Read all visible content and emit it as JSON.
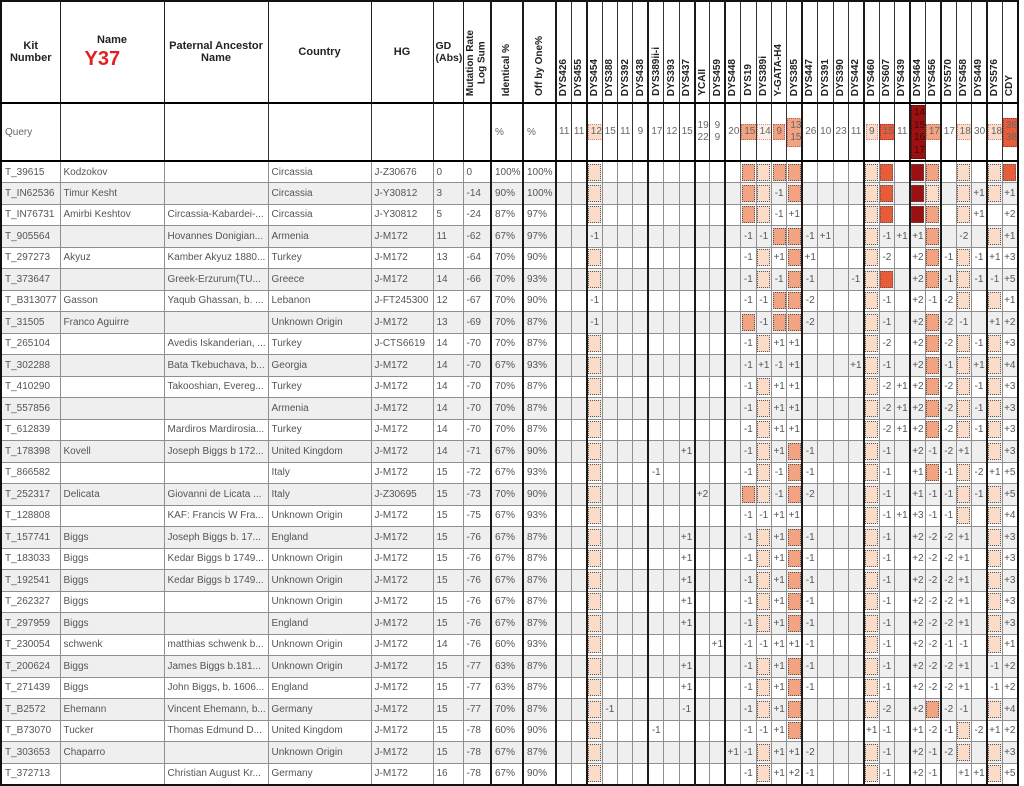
{
  "table_title": "Y-DNA matches comparison grid",
  "header": {
    "kit": "Kit\nNumber",
    "name": "Name",
    "name_badge": "Y37",
    "ancestor": "Paternal Ancestor\nName",
    "country": "Country",
    "hg": "HG",
    "gd": "GD\n(Abs)",
    "mutation": "Mutation Rate\nLog Sum",
    "identical": "Identical %",
    "offbyone": "Off by One%"
  },
  "colors": {
    "badge_red": "#e41f1f",
    "tint_faint": "#fdefe8",
    "tint_light": "#fadcc8",
    "tint_salmon": "#f2a381",
    "tint_red": "#e85c3a",
    "tint_darkred": "#9b1111",
    "row_stripe": "#efefef"
  },
  "markers": [
    "DYS426",
    "DYS455",
    "DYS454",
    "DYS388",
    "DYS392",
    "DYS438",
    "DYS389ii-i",
    "DYS393",
    "DYS437",
    "YCAII",
    "DYS459",
    "DYS448",
    "DYS19",
    "DYS389i",
    "Y-GATA-H4",
    "DYS385",
    "DYS447",
    "DYS391",
    "DYS390",
    "DYS442",
    "DYS460",
    "DYS607",
    "DYS439",
    "DYS464",
    "DYS456",
    "DYS570",
    "DYS458",
    "DYS449",
    "DYS576",
    "CDY"
  ],
  "query": {
    "kit": "Query",
    "identical": "%",
    "offbyone": "%",
    "values": [
      {
        "v": "11",
        "c": 0
      },
      {
        "v": "11",
        "c": 0
      },
      {
        "v": "12",
        "c": 2
      },
      {
        "v": "15",
        "c": 0
      },
      {
        "v": "11",
        "c": 0
      },
      {
        "v": "9",
        "c": 0
      },
      {
        "v": "17",
        "c": 0
      },
      {
        "v": "12",
        "c": 0
      },
      {
        "v": "15",
        "c": 0
      },
      {
        "v": "19\n22",
        "c": 0
      },
      {
        "v": "9\n9",
        "c": 0
      },
      {
        "v": "20",
        "c": 0
      },
      {
        "v": "15",
        "c": 3
      },
      {
        "v": "14",
        "c": 1
      },
      {
        "v": "9",
        "c": 3
      },
      {
        "v": "13\n15",
        "c": 3
      },
      {
        "v": "26",
        "c": 0
      },
      {
        "v": "10",
        "c": 0
      },
      {
        "v": "23",
        "c": 0
      },
      {
        "v": "11",
        "c": 0
      },
      {
        "v": "9",
        "c": 2
      },
      {
        "v": "15",
        "c": 4
      },
      {
        "v": "11",
        "c": 0
      },
      {
        "v": "14\n15\n16\n17",
        "c": 5
      },
      {
        "v": "17",
        "c": 3
      },
      {
        "v": "17",
        "c": 0
      },
      {
        "v": "18",
        "c": 2
      },
      {
        "v": "30",
        "c": 0
      },
      {
        "v": "18",
        "c": 2
      },
      {
        "v": "36\n38",
        "c": 4
      }
    ]
  },
  "rows": [
    {
      "kit": "T_39615",
      "name": "Kodzokov",
      "anc": "",
      "country": "Circassia",
      "hg": "J-Z30676",
      "gd": "0",
      "mut": "0",
      "id": "100%",
      "off": "100%",
      "m": {
        "DYS454": "b2",
        "DYS19": "b3",
        "DYS389i": "b2",
        "Y-GATA-H4": "b3",
        "DYS385": "b3",
        "DYS460": "b2",
        "DYS607": "b4",
        "DYS464": "b5",
        "DYS456": "b3",
        "DYS458": "b2",
        "DYS576": "b2",
        "CDY": "b4"
      }
    },
    {
      "kit": "T_IN62536",
      "name": "Timur Kesht",
      "anc": "",
      "country": "Circassia",
      "hg": "J-Y30812",
      "gd": "3",
      "mut": "-14",
      "id": "90%",
      "off": "100%",
      "m": {
        "DYS454": "b2",
        "DYS19": "b3",
        "DYS389i": "b2",
        "Y-GATA-H4": "-1",
        "DYS385": "b3",
        "DYS460": "b2",
        "DYS607": "b4",
        "DYS464": "b5",
        "DYS456": "b2",
        "DYS458": "b2",
        "DYS449": "+1",
        "DYS576": "b2",
        "CDY": "+1"
      }
    },
    {
      "kit": "T_IN76731",
      "name": "Amirbi Keshtov",
      "anc": "Circassia-Kabardei-...",
      "country": "Circassia",
      "hg": "J-Y30812",
      "gd": "5",
      "mut": "-24",
      "id": "87%",
      "off": "97%",
      "m": {
        "DYS454": "b2",
        "DYS19": "b3",
        "DYS389i": "b2",
        "Y-GATA-H4": "-1",
        "DYS385": "+1",
        "DYS460": "b2",
        "DYS607": "b4",
        "DYS464": "b5",
        "DYS456": "b3",
        "DYS458": "b2",
        "DYS449": "+1",
        "CDY": "+2"
      }
    },
    {
      "kit": "T_905564",
      "name": "",
      "anc": "Hovannes Donigian...",
      "country": "Armenia",
      "hg": "J-M172",
      "gd": "11",
      "mut": "-62",
      "id": "67%",
      "off": "97%",
      "m": {
        "DYS454": "-1",
        "DYS19": "-1",
        "DYS389i": "-1",
        "Y-GATA-H4": "b3",
        "DYS385": "b3",
        "DYS447": "-1",
        "DYS391": "+1",
        "DYS460": "b2",
        "DYS607": "-1",
        "DYS439": "+1",
        "DYS464": "+1",
        "DYS456": "b3",
        "DYS458": "-2",
        "DYS576": "b2",
        "CDY": "+1"
      }
    },
    {
      "kit": "T_297273",
      "name": "Akyuz",
      "anc": "Kamber Akyuz 1880...",
      "country": "Turkey",
      "hg": "J-M172",
      "gd": "13",
      "mut": "-64",
      "id": "70%",
      "off": "90%",
      "m": {
        "DYS454": "b2",
        "DYS19": "-1",
        "DYS389i": "b2",
        "Y-GATA-H4": "+1",
        "DYS385": "b3",
        "DYS447": "+1",
        "DYS460": "b2",
        "DYS607": "-2",
        "DYS464": "+2",
        "DYS456": "b3",
        "DYS570": "-1",
        "DYS458": "b2",
        "DYS449": "-1",
        "DYS576": "+1",
        "CDY": "+3"
      }
    },
    {
      "kit": "T_373647",
      "name": "",
      "anc": "Greek-Erzurum(TU...",
      "country": "Greece",
      "hg": "J-M172",
      "gd": "14",
      "mut": "-66",
      "id": "70%",
      "off": "93%",
      "m": {
        "DYS454": "b2",
        "DYS19": "-1",
        "DYS389i": "b2",
        "Y-GATA-H4": "-1",
        "DYS385": "b3",
        "DYS447": "-1",
        "DYS442": "-1",
        "DYS460": "b2",
        "DYS607": "b4",
        "DYS464": "+2",
        "DYS456": "b3",
        "DYS570": "-1",
        "DYS458": "b2",
        "DYS449": "-1",
        "DYS576": "-1",
        "CDY": "+5"
      }
    },
    {
      "kit": "T_B313077",
      "name": "Gasson",
      "anc": "Yaqub Ghassan, b. ...",
      "country": "Lebanon",
      "hg": "J-FT245300",
      "gd": "12",
      "mut": "-67",
      "id": "70%",
      "off": "90%",
      "m": {
        "DYS454": "-1",
        "DYS19": "-1",
        "DYS389i": "-1",
        "Y-GATA-H4": "b3",
        "DYS385": "b3",
        "DYS447": "-2",
        "DYS460": "b2",
        "DYS607": "-1",
        "DYS464": "+2",
        "DYS456": "-1",
        "DYS570": "-2",
        "DYS458": "b2",
        "DYS576": "b2",
        "CDY": "+1"
      }
    },
    {
      "kit": "T_31505",
      "name": "Franco Aguirre",
      "anc": "",
      "country": "Unknown Origin",
      "hg": "J-M172",
      "gd": "13",
      "mut": "-69",
      "id": "70%",
      "off": "87%",
      "m": {
        "DYS454": "-1",
        "DYS19": "b3",
        "DYS389i": "-1",
        "Y-GATA-H4": "b3",
        "DYS385": "b3",
        "DYS447": "-2",
        "DYS460": "b2",
        "DYS607": "-1",
        "DYS464": "+2",
        "DYS456": "b3",
        "DYS570": "-2",
        "DYS458": "-1",
        "DYS576": "+1",
        "CDY": "+2"
      }
    },
    {
      "kit": "T_265104",
      "name": "",
      "anc": "Avedis Iskanderian, ...",
      "country": "Turkey",
      "hg": "J-CTS6619",
      "gd": "14",
      "mut": "-70",
      "id": "70%",
      "off": "87%",
      "m": {
        "DYS454": "b2",
        "DYS19": "-1",
        "DYS389i": "b2",
        "Y-GATA-H4": "+1",
        "DYS385": "+1",
        "DYS460": "b2",
        "DYS607": "-2",
        "DYS464": "+2",
        "DYS456": "b3",
        "DYS570": "-2",
        "DYS458": "b2",
        "DYS449": "-1",
        "DYS576": "b2",
        "CDY": "+3"
      }
    },
    {
      "kit": "T_302288",
      "name": "",
      "anc": "Bata Tkebuchava, b...",
      "country": "Georgia",
      "hg": "J-M172",
      "gd": "14",
      "mut": "-70",
      "id": "67%",
      "off": "93%",
      "m": {
        "DYS454": "b2",
        "DYS19": "-1",
        "DYS389i": "+1",
        "Y-GATA-H4": "-1",
        "DYS385": "+1",
        "DYS442": "+1",
        "DYS460": "b2",
        "DYS607": "-1",
        "DYS464": "+2",
        "DYS456": "b3",
        "DYS570": "-1",
        "DYS458": "b2",
        "DYS449": "+1",
        "DYS576": "b2",
        "CDY": "+4"
      }
    },
    {
      "kit": "T_410290",
      "name": "",
      "anc": "Takooshian, Evereg...",
      "country": "Turkey",
      "hg": "J-M172",
      "gd": "14",
      "mut": "-70",
      "id": "70%",
      "off": "87%",
      "m": {
        "DYS454": "b2",
        "DYS19": "-1",
        "DYS389i": "b2",
        "Y-GATA-H4": "+1",
        "DYS385": "+1",
        "DYS460": "b2",
        "DYS607": "-2",
        "DYS439": "+1",
        "DYS464": "+2",
        "DYS456": "b3",
        "DYS570": "-2",
        "DYS458": "b2",
        "DYS449": "-1",
        "DYS576": "b2",
        "CDY": "+3"
      }
    },
    {
      "kit": "T_557856",
      "name": "",
      "anc": "",
      "country": "Armenia",
      "hg": "J-M172",
      "gd": "14",
      "mut": "-70",
      "id": "70%",
      "off": "87%",
      "m": {
        "DYS454": "b2",
        "DYS19": "-1",
        "DYS389i": "b2",
        "Y-GATA-H4": "+1",
        "DYS385": "+1",
        "DYS460": "b2",
        "DYS607": "-2",
        "DYS439": "+1",
        "DYS464": "+2",
        "DYS456": "b3",
        "DYS570": "-2",
        "DYS458": "b2",
        "DYS449": "-1",
        "DYS576": "b2",
        "CDY": "+3"
      }
    },
    {
      "kit": "T_612839",
      "name": "",
      "anc": "Mardiros Mardirosia...",
      "country": "Turkey",
      "hg": "J-M172",
      "gd": "14",
      "mut": "-70",
      "id": "70%",
      "off": "87%",
      "m": {
        "DYS454": "b2",
        "DYS19": "-1",
        "DYS389i": "b2",
        "Y-GATA-H4": "+1",
        "DYS385": "+1",
        "DYS460": "b2",
        "DYS607": "-2",
        "DYS439": "+1",
        "DYS464": "+2",
        "DYS456": "b3",
        "DYS570": "-2",
        "DYS458": "b2",
        "DYS449": "-1",
        "DYS576": "b2",
        "CDY": "+3"
      }
    },
    {
      "kit": "T_178398",
      "name": "Kovell",
      "anc": "Joseph Biggs b 172...",
      "country": "United Kingdom",
      "hg": "J-M172",
      "gd": "14",
      "mut": "-71",
      "id": "67%",
      "off": "90%",
      "m": {
        "DYS454": "b2",
        "DYS437": "+1",
        "DYS19": "-1",
        "DYS389i": "b2",
        "Y-GATA-H4": "+1",
        "DYS385": "b3",
        "DYS447": "-1",
        "DYS460": "b2",
        "DYS607": "-1",
        "DYS464": "+2",
        "DYS456": "-1",
        "DYS570": "-2",
        "DYS458": "+1",
        "DYS576": "b2",
        "CDY": "+3"
      }
    },
    {
      "kit": "T_866582",
      "name": "",
      "anc": "",
      "country": "Italy",
      "hg": "J-M172",
      "gd": "15",
      "mut": "-72",
      "id": "67%",
      "off": "93%",
      "m": {
        "DYS454": "b2",
        "DYS389ii-i": "-1",
        "DYS19": "-1",
        "DYS389i": "b2",
        "Y-GATA-H4": "-1",
        "DYS385": "b3",
        "DYS447": "-1",
        "DYS460": "b2",
        "DYS607": "-1",
        "DYS464": "+1",
        "DYS456": "b3",
        "DYS570": "-1",
        "DYS458": "b2",
        "DYS449": "-2",
        "DYS576": "+1",
        "CDY": "+5"
      }
    },
    {
      "kit": "T_252317",
      "name": "Delicata",
      "anc": "Giovanni de Licata ...",
      "country": "Italy",
      "hg": "J-Z30695",
      "gd": "15",
      "mut": "-73",
      "id": "70%",
      "off": "90%",
      "m": {
        "DYS454": "b2",
        "YCAII": "+2",
        "DYS19": "b3",
        "DYS389i": "b2",
        "Y-GATA-H4": "-1",
        "DYS385": "b3",
        "DYS447": "-2",
        "DYS460": "b2",
        "DYS607": "-1",
        "DYS464": "+1",
        "DYS456": "-1",
        "DYS570": "-1",
        "DYS458": "b2",
        "DYS449": "-1",
        "DYS576": "b2",
        "CDY": "+5"
      }
    },
    {
      "kit": "T_128808",
      "name": "",
      "anc": "KAF: Francis W Fra...",
      "country": "Unknown Origin",
      "hg": "J-M172",
      "gd": "15",
      "mut": "-75",
      "id": "67%",
      "off": "93%",
      "m": {
        "DYS454": "b2",
        "DYS19": "-1",
        "DYS389i": "-1",
        "Y-GATA-H4": "+1",
        "DYS385": "+1",
        "DYS460": "b2",
        "DYS607": "-1",
        "DYS439": "+1",
        "DYS464": "+3",
        "DYS456": "-1",
        "DYS570": "-1",
        "DYS458": "b2",
        "DYS576": "b2",
        "CDY": "+4"
      }
    },
    {
      "kit": "T_157741",
      "name": "Biggs",
      "anc": "Joseph Biggs b. 17...",
      "country": "England",
      "hg": "J-M172",
      "gd": "15",
      "mut": "-76",
      "id": "67%",
      "off": "87%",
      "m": {
        "DYS454": "b2",
        "DYS437": "+1",
        "DYS19": "-1",
        "DYS389i": "b2",
        "Y-GATA-H4": "+1",
        "DYS385": "b3",
        "DYS447": "-1",
        "DYS460": "b2",
        "DYS607": "-1",
        "DYS464": "+2",
        "DYS456": "-2",
        "DYS570": "-2",
        "DYS458": "+1",
        "DYS576": "b2",
        "CDY": "+3"
      }
    },
    {
      "kit": "T_183033",
      "name": "Biggs",
      "anc": "Kedar Biggs b 1749...",
      "country": "Unknown Origin",
      "hg": "J-M172",
      "gd": "15",
      "mut": "-76",
      "id": "67%",
      "off": "87%",
      "m": {
        "DYS454": "b2",
        "DYS437": "+1",
        "DYS19": "-1",
        "DYS389i": "b2",
        "Y-GATA-H4": "+1",
        "DYS385": "b3",
        "DYS447": "-1",
        "DYS460": "b2",
        "DYS607": "-1",
        "DYS464": "+2",
        "DYS456": "-2",
        "DYS570": "-2",
        "DYS458": "+1",
        "DYS576": "b2",
        "CDY": "+3"
      }
    },
    {
      "kit": "T_192541",
      "name": "Biggs",
      "anc": "Kedar Biggs b 1749...",
      "country": "Unknown Origin",
      "hg": "J-M172",
      "gd": "15",
      "mut": "-76",
      "id": "67%",
      "off": "87%",
      "m": {
        "DYS454": "b2",
        "DYS437": "+1",
        "DYS19": "-1",
        "DYS389i": "b2",
        "Y-GATA-H4": "+1",
        "DYS385": "b3",
        "DYS447": "-1",
        "DYS460": "b2",
        "DYS607": "-1",
        "DYS464": "+2",
        "DYS456": "-2",
        "DYS570": "-2",
        "DYS458": "+1",
        "DYS576": "b2",
        "CDY": "+3"
      }
    },
    {
      "kit": "T_262327",
      "name": "Biggs",
      "anc": "",
      "country": "Unknown Origin",
      "hg": "J-M172",
      "gd": "15",
      "mut": "-76",
      "id": "67%",
      "off": "87%",
      "m": {
        "DYS454": "b2",
        "DYS437": "+1",
        "DYS19": "-1",
        "DYS389i": "b2",
        "Y-GATA-H4": "+1",
        "DYS385": "b3",
        "DYS447": "-1",
        "DYS460": "b2",
        "DYS607": "-1",
        "DYS464": "+2",
        "DYS456": "-2",
        "DYS570": "-2",
        "DYS458": "+1",
        "DYS576": "b2",
        "CDY": "+3"
      }
    },
    {
      "kit": "T_297959",
      "name": "Biggs",
      "anc": "",
      "country": "England",
      "hg": "J-M172",
      "gd": "15",
      "mut": "-76",
      "id": "67%",
      "off": "87%",
      "m": {
        "DYS454": "b2",
        "DYS437": "+1",
        "DYS19": "-1",
        "DYS389i": "b2",
        "Y-GATA-H4": "+1",
        "DYS385": "b3",
        "DYS447": "-1",
        "DYS460": "b2",
        "DYS607": "-1",
        "DYS464": "+2",
        "DYS456": "-2",
        "DYS570": "-2",
        "DYS458": "+1",
        "DYS576": "b2",
        "CDY": "+3"
      }
    },
    {
      "kit": "T_230054",
      "name": "schwenk",
      "anc": "matthias schwenk b...",
      "country": "Unknown Origin",
      "hg": "J-M172",
      "gd": "14",
      "mut": "-76",
      "id": "60%",
      "off": "93%",
      "m": {
        "DYS454": "b2",
        "DYS459": "+1",
        "DYS19": "-1",
        "DYS389i": "-1",
        "Y-GATA-H4": "+1",
        "DYS385": "+1",
        "DYS447": "-1",
        "DYS460": "b2",
        "DYS607": "-1",
        "DYS464": "+2",
        "DYS456": "-2",
        "DYS570": "-1",
        "DYS458": "-1",
        "DYS576": "b2",
        "CDY": "+1"
      }
    },
    {
      "kit": "T_200624",
      "name": "Biggs",
      "anc": "James Biggs b.181...",
      "country": "Unknown Origin",
      "hg": "J-M172",
      "gd": "15",
      "mut": "-77",
      "id": "63%",
      "off": "87%",
      "m": {
        "DYS454": "b2",
        "DYS437": "+1",
        "DYS19": "-1",
        "DYS389i": "b2",
        "Y-GATA-H4": "+1",
        "DYS385": "b3",
        "DYS447": "-1",
        "DYS460": "b2",
        "DYS607": "-1",
        "DYS464": "+2",
        "DYS456": "-2",
        "DYS570": "-2",
        "DYS458": "+1",
        "DYS576": "-1",
        "CDY": "+2"
      }
    },
    {
      "kit": "T_271439",
      "name": "Biggs",
      "anc": "John Biggs, b. 1606...",
      "country": "England",
      "hg": "J-M172",
      "gd": "15",
      "mut": "-77",
      "id": "63%",
      "off": "87%",
      "m": {
        "DYS454": "b2",
        "DYS437": "+1",
        "DYS19": "-1",
        "DYS389i": "b2",
        "Y-GATA-H4": "+1",
        "DYS385": "b3",
        "DYS447": "-1",
        "DYS460": "b2",
        "DYS607": "-1",
        "DYS464": "+2",
        "DYS456": "-2",
        "DYS570": "-2",
        "DYS458": "+1",
        "DYS576": "-1",
        "CDY": "+2"
      }
    },
    {
      "kit": "T_B2572",
      "name": "Ehemann",
      "anc": "Vincent Ehemann, b...",
      "country": "Germany",
      "hg": "J-M172",
      "gd": "15",
      "mut": "-77",
      "id": "70%",
      "off": "87%",
      "m": {
        "DYS454": "b2",
        "DYS388": "-1",
        "DYS437": "-1",
        "DYS19": "-1",
        "DYS389i": "b2",
        "Y-GATA-H4": "+1",
        "DYS385": "b3",
        "DYS460": "b2",
        "DYS607": "-2",
        "DYS464": "+2",
        "DYS456": "b3",
        "DYS570": "-2",
        "DYS458": "-1",
        "DYS576": "b2",
        "CDY": "+4"
      }
    },
    {
      "kit": "T_B73070",
      "name": "Tucker",
      "anc": "Thomas Edmund D...",
      "country": "United Kingdom",
      "hg": "J-M172",
      "gd": "15",
      "mut": "-78",
      "id": "60%",
      "off": "90%",
      "m": {
        "DYS454": "b2",
        "DYS389ii-i": "-1",
        "DYS19": "-1",
        "DYS389i": "-1",
        "Y-GATA-H4": "+1",
        "DYS385": "b3",
        "DYS460": "+1",
        "DYS607": "-1",
        "DYS464": "+1",
        "DYS456": "-2",
        "DYS570": "-1",
        "DYS458": "b2",
        "DYS449": "-2",
        "DYS576": "+1",
        "CDY": "+2"
      }
    },
    {
      "kit": "T_303653",
      "name": "Chaparro",
      "anc": "",
      "country": "Unknown Origin",
      "hg": "J-M172",
      "gd": "15",
      "mut": "-78",
      "id": "67%",
      "off": "87%",
      "m": {
        "DYS454": "b2",
        "DYS448": "+1",
        "DYS19": "-1",
        "DYS389i": "b2",
        "Y-GATA-H4": "+1",
        "DYS385": "+1",
        "DYS447": "-2",
        "DYS460": "b2",
        "DYS607": "-1",
        "DYS464": "+2",
        "DYS456": "-1",
        "DYS570": "-2",
        "DYS458": "b2",
        "DYS576": "b2",
        "CDY": "+3"
      }
    },
    {
      "kit": "T_372713",
      "name": "",
      "anc": "Christian August Kr...",
      "country": "Germany",
      "hg": "J-M172",
      "gd": "16",
      "mut": "-78",
      "id": "67%",
      "off": "90%",
      "m": {
        "DYS454": "b2",
        "DYS19": "-1",
        "DYS389i": "b2",
        "Y-GATA-H4": "+1",
        "DYS385": "+2",
        "DYS447": "-1",
        "DYS460": "b2",
        "DYS607": "-1",
        "DYS464": "+2",
        "DYS456": "-1",
        "DYS458": "+1",
        "DYS449": "+1",
        "DYS576": "b2",
        "CDY": "+5"
      }
    }
  ]
}
